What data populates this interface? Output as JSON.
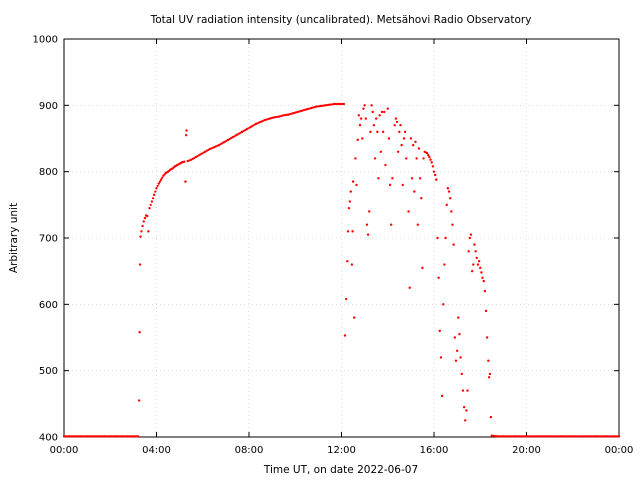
{
  "chart_data": {
    "type": "scatter",
    "title": "Total UV radiation intensity (uncalibrated). Metsähovi Radio Observatory",
    "xlabel": "Time UT, on date 2022-06-07",
    "ylabel": "Arbitrary unit",
    "x_unit": "hours UT",
    "xlim": [
      0,
      24
    ],
    "ylim": [
      400,
      1000
    ],
    "xticks": [
      {
        "value": 0,
        "label": "00:00"
      },
      {
        "value": 4,
        "label": "04:00"
      },
      {
        "value": 8,
        "label": "08:00"
      },
      {
        "value": 12,
        "label": "12:00"
      },
      {
        "value": 16,
        "label": "16:00"
      },
      {
        "value": 20,
        "label": "20:00"
      },
      {
        "value": 24,
        "label": "00:00"
      }
    ],
    "yticks": [
      {
        "value": 400,
        "label": "400"
      },
      {
        "value": 500,
        "label": "500"
      },
      {
        "value": 600,
        "label": "600"
      },
      {
        "value": 700,
        "label": "700"
      },
      {
        "value": 800,
        "label": "800"
      },
      {
        "value": 900,
        "label": "900"
      },
      {
        "value": 1000,
        "label": "1000"
      }
    ],
    "grid": true,
    "marker_color": "#ff0000",
    "series": [
      {
        "name": "",
        "points": [
          [
            0.0,
            401
          ],
          [
            0.25,
            401
          ],
          [
            0.5,
            401
          ],
          [
            0.75,
            401
          ],
          [
            1.0,
            401
          ],
          [
            1.25,
            401
          ],
          [
            1.5,
            401
          ],
          [
            1.75,
            401
          ],
          [
            2.0,
            401
          ],
          [
            2.25,
            401
          ],
          [
            2.5,
            401
          ],
          [
            2.75,
            401
          ],
          [
            3.0,
            401
          ],
          [
            3.2,
            401
          ],
          [
            3.25,
            455
          ],
          [
            3.27,
            558
          ],
          [
            3.29,
            660
          ],
          [
            3.31,
            702
          ],
          [
            3.35,
            710
          ],
          [
            3.4,
            718
          ],
          [
            3.45,
            725
          ],
          [
            3.5,
            730
          ],
          [
            3.55,
            734
          ],
          [
            3.6,
            733
          ],
          [
            3.65,
            710
          ],
          [
            3.7,
            745
          ],
          [
            3.8,
            755
          ],
          [
            3.9,
            765
          ],
          [
            4.0,
            775
          ],
          [
            4.1,
            782
          ],
          [
            4.2,
            788
          ],
          [
            4.3,
            794
          ],
          [
            4.4,
            798
          ],
          [
            4.5,
            800
          ],
          [
            4.6,
            803
          ],
          [
            4.7,
            805
          ],
          [
            4.8,
            808
          ],
          [
            4.9,
            810
          ],
          [
            5.0,
            812
          ],
          [
            5.1,
            814
          ],
          [
            5.2,
            815
          ],
          [
            5.25,
            785
          ],
          [
            5.28,
            855
          ],
          [
            5.3,
            862
          ],
          [
            5.35,
            816
          ],
          [
            5.5,
            818
          ],
          [
            5.7,
            822
          ],
          [
            5.9,
            826
          ],
          [
            6.1,
            830
          ],
          [
            6.3,
            834
          ],
          [
            6.5,
            837
          ],
          [
            6.7,
            840
          ],
          [
            6.9,
            844
          ],
          [
            7.1,
            848
          ],
          [
            7.3,
            852
          ],
          [
            7.5,
            856
          ],
          [
            7.7,
            860
          ],
          [
            7.9,
            864
          ],
          [
            8.1,
            868
          ],
          [
            8.3,
            872
          ],
          [
            8.5,
            875
          ],
          [
            8.7,
            878
          ],
          [
            8.9,
            880
          ],
          [
            9.1,
            882
          ],
          [
            9.3,
            883
          ],
          [
            9.5,
            885
          ],
          [
            9.7,
            886
          ],
          [
            9.9,
            888
          ],
          [
            10.1,
            890
          ],
          [
            10.3,
            892
          ],
          [
            10.5,
            894
          ],
          [
            10.7,
            896
          ],
          [
            10.9,
            898
          ],
          [
            11.1,
            899
          ],
          [
            11.3,
            900
          ],
          [
            11.5,
            901
          ],
          [
            11.7,
            902
          ],
          [
            11.9,
            902
          ],
          [
            12.1,
            902
          ],
          [
            12.15,
            553
          ],
          [
            12.2,
            608
          ],
          [
            12.25,
            665
          ],
          [
            12.28,
            710
          ],
          [
            12.32,
            745
          ],
          [
            12.36,
            755
          ],
          [
            12.4,
            770
          ],
          [
            12.45,
            660
          ],
          [
            12.48,
            710
          ],
          [
            12.5,
            785
          ],
          [
            12.55,
            580
          ],
          [
            12.6,
            820
          ],
          [
            12.65,
            780
          ],
          [
            12.7,
            848
          ],
          [
            12.75,
            885
          ],
          [
            12.8,
            870
          ],
          [
            12.85,
            880
          ],
          [
            12.9,
            850
          ],
          [
            12.95,
            895
          ],
          [
            13.0,
            900
          ],
          [
            13.05,
            880
          ],
          [
            13.1,
            720
          ],
          [
            13.15,
            705
          ],
          [
            13.2,
            740
          ],
          [
            13.25,
            860
          ],
          [
            13.3,
            900
          ],
          [
            13.35,
            890
          ],
          [
            13.4,
            870
          ],
          [
            13.45,
            820
          ],
          [
            13.5,
            880
          ],
          [
            13.55,
            860
          ],
          [
            13.6,
            790
          ],
          [
            13.65,
            885
          ],
          [
            13.7,
            830
          ],
          [
            13.75,
            890
          ],
          [
            13.8,
            860
          ],
          [
            13.85,
            890
          ],
          [
            13.9,
            810
          ],
          [
            14.0,
            895
          ],
          [
            14.05,
            850
          ],
          [
            14.1,
            780
          ],
          [
            14.15,
            720
          ],
          [
            14.2,
            790
          ],
          [
            14.3,
            870
          ],
          [
            14.35,
            880
          ],
          [
            14.4,
            875
          ],
          [
            14.45,
            830
          ],
          [
            14.5,
            860
          ],
          [
            14.55,
            870
          ],
          [
            14.6,
            840
          ],
          [
            14.65,
            780
          ],
          [
            14.7,
            850
          ],
          [
            14.75,
            860
          ],
          [
            14.8,
            820
          ],
          [
            14.9,
            740
          ],
          [
            14.95,
            625
          ],
          [
            15.0,
            850
          ],
          [
            15.05,
            790
          ],
          [
            15.1,
            840
          ],
          [
            15.15,
            770
          ],
          [
            15.2,
            845
          ],
          [
            15.25,
            820
          ],
          [
            15.3,
            720
          ],
          [
            15.35,
            835
          ],
          [
            15.4,
            790
          ],
          [
            15.45,
            760
          ],
          [
            15.5,
            655
          ],
          [
            15.55,
            820
          ],
          [
            15.6,
            830
          ],
          [
            15.7,
            828
          ],
          [
            15.75,
            825
          ],
          [
            15.8,
            822
          ],
          [
            15.85,
            818
          ],
          [
            15.9,
            814
          ],
          [
            15.95,
            808
          ],
          [
            16.0,
            800
          ],
          [
            16.05,
            795
          ],
          [
            16.1,
            788
          ],
          [
            16.15,
            700
          ],
          [
            16.2,
            640
          ],
          [
            16.25,
            560
          ],
          [
            16.3,
            520
          ],
          [
            16.35,
            462
          ],
          [
            16.4,
            600
          ],
          [
            16.45,
            660
          ],
          [
            16.5,
            700
          ],
          [
            16.55,
            750
          ],
          [
            16.6,
            775
          ],
          [
            16.65,
            770
          ],
          [
            16.7,
            760
          ],
          [
            16.75,
            740
          ],
          [
            16.8,
            720
          ],
          [
            16.85,
            690
          ],
          [
            16.9,
            550
          ],
          [
            16.95,
            515
          ],
          [
            17.0,
            530
          ],
          [
            17.05,
            580
          ],
          [
            17.1,
            555
          ],
          [
            17.15,
            520
          ],
          [
            17.2,
            495
          ],
          [
            17.25,
            470
          ],
          [
            17.3,
            445
          ],
          [
            17.35,
            425
          ],
          [
            17.4,
            440
          ],
          [
            17.45,
            470
          ],
          [
            17.5,
            680
          ],
          [
            17.55,
            700
          ],
          [
            17.6,
            705
          ],
          [
            17.65,
            650
          ],
          [
            17.7,
            660
          ],
          [
            17.75,
            690
          ],
          [
            17.8,
            680
          ],
          [
            17.85,
            670
          ],
          [
            17.9,
            660
          ],
          [
            17.95,
            665
          ],
          [
            18.0,
            655
          ],
          [
            18.05,
            648
          ],
          [
            18.1,
            640
          ],
          [
            18.15,
            635
          ],
          [
            18.2,
            620
          ],
          [
            18.25,
            590
          ],
          [
            18.3,
            550
          ],
          [
            18.35,
            515
          ],
          [
            18.38,
            490
          ],
          [
            18.42,
            495
          ],
          [
            18.46,
            430
          ],
          [
            18.5,
            402
          ],
          [
            18.75,
            401
          ],
          [
            19.0,
            401
          ],
          [
            19.5,
            401
          ],
          [
            20.0,
            401
          ],
          [
            20.5,
            401
          ],
          [
            21.0,
            401
          ],
          [
            21.5,
            401
          ],
          [
            22.0,
            401
          ],
          [
            22.5,
            401
          ],
          [
            23.0,
            401
          ],
          [
            23.5,
            401
          ],
          [
            24.0,
            401
          ]
        ]
      }
    ]
  }
}
